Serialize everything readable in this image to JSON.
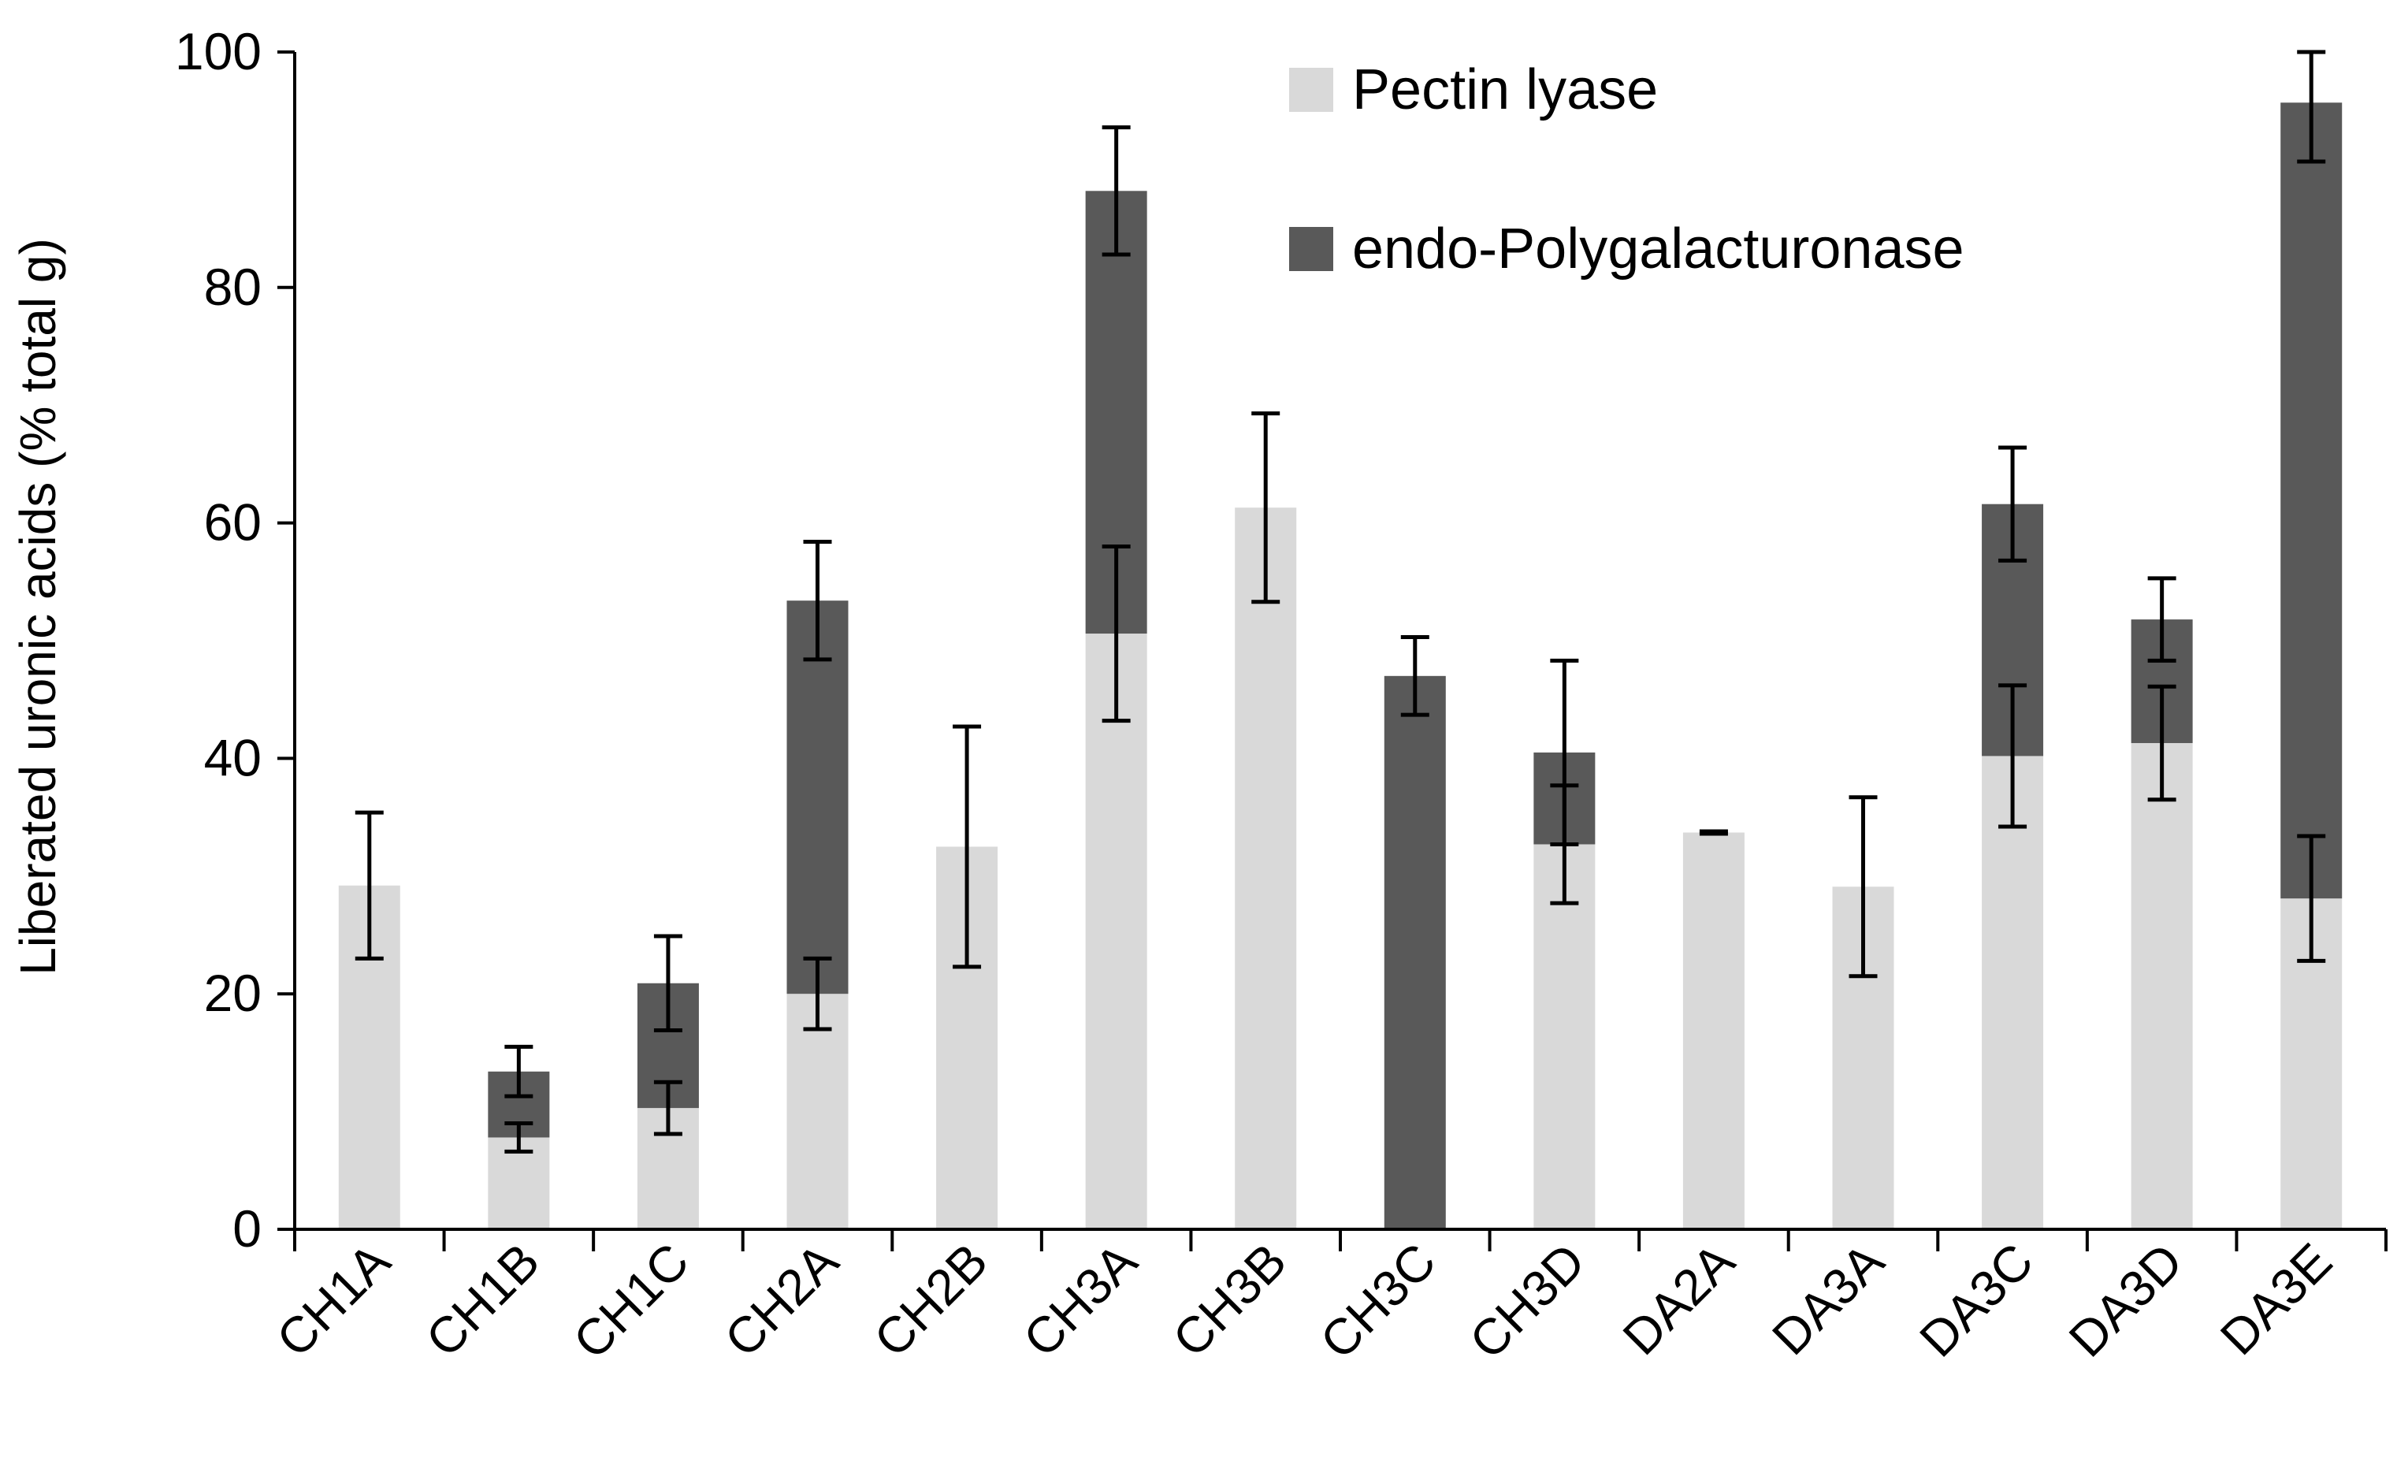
{
  "chart_data": {
    "type": "bar",
    "stacked": true,
    "title": "",
    "xlabel": "",
    "ylabel": "Liberated uronic acids (% total g)",
    "ylim": [
      0,
      100
    ],
    "yticks": [
      0,
      20,
      40,
      60,
      80,
      100
    ],
    "categories": [
      "CH1A",
      "CH1B",
      "CH1C",
      "CH2A",
      "CH2B",
      "CH3A",
      "CH3B",
      "CH3C",
      "CH3D",
      "DA2A",
      "DA3A",
      "DA3C",
      "DA3D",
      "DA3E"
    ],
    "series": [
      {
        "name": "Pectin lyase",
        "color": "#d9d9d9",
        "values": [
          29.2,
          7.8,
          10.3,
          20.0,
          32.5,
          50.6,
          61.3,
          0,
          32.7,
          33.7,
          29.1,
          40.2,
          41.3,
          28.1
        ],
        "errors": [
          6.2,
          1.2,
          2.2,
          3.0,
          10.2,
          7.4,
          8.0,
          0,
          5.0,
          0.1,
          7.6,
          6.0,
          4.8,
          5.3
        ]
      },
      {
        "name": "endo-Polygalacturonase",
        "color": "#595959",
        "values": [
          0,
          5.6,
          10.6,
          33.4,
          0,
          37.6,
          0,
          47.0,
          7.8,
          0,
          0,
          21.4,
          10.5,
          67.6
        ],
        "errors": [
          0,
          2.1,
          4.0,
          5.0,
          0,
          5.4,
          0,
          3.3,
          7.8,
          0,
          0,
          4.8,
          3.5,
          5.0
        ]
      }
    ],
    "legend_position": "top-right",
    "grid": false
  }
}
